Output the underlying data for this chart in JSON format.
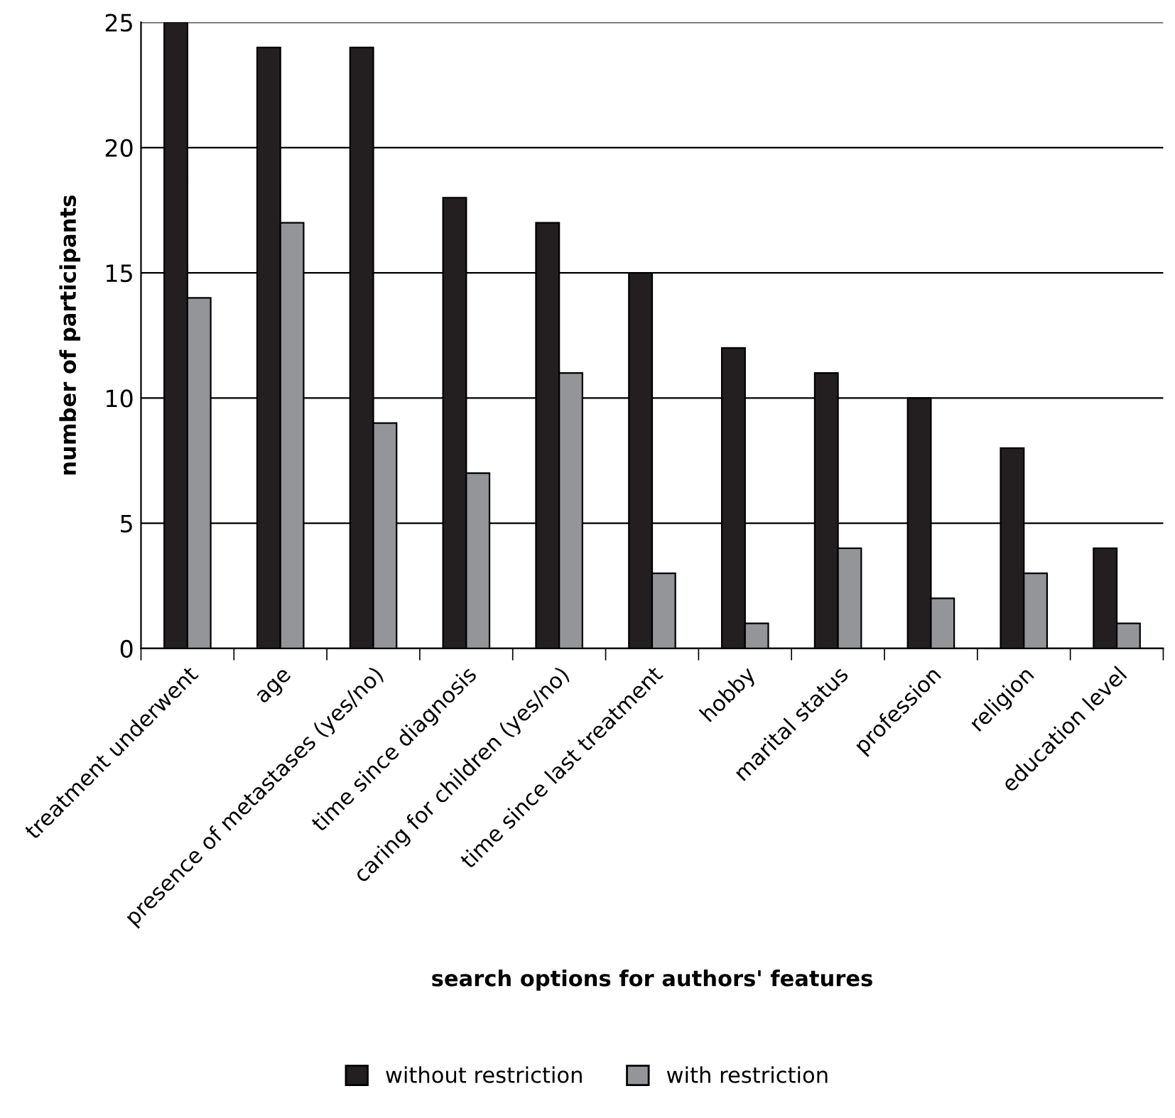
{
  "chart_data": {
    "type": "bar",
    "xlabel": "search options for authors' features",
    "ylabel": "number of participants",
    "categories": [
      "treatment underwent",
      "age",
      "presence of metastases (yes/no)",
      "time since diagnosis",
      "caring for children (yes/no)",
      "time since last treatment",
      "hobby",
      "marital status",
      "profession",
      "religion",
      "education level"
    ],
    "series": [
      {
        "name": "without restriction",
        "color": "#231f20",
        "values": [
          25,
          24,
          24,
          18,
          17,
          15,
          12,
          11,
          10,
          8,
          4
        ]
      },
      {
        "name": "with restriction",
        "color": "#939598",
        "values": [
          14,
          17,
          9,
          7,
          11,
          3,
          1,
          4,
          2,
          3,
          1
        ]
      }
    ],
    "ylim": [
      0,
      25
    ],
    "yticks": [
      0,
      5,
      10,
      15,
      20,
      25
    ],
    "grid": "y",
    "legend": "bottom"
  }
}
